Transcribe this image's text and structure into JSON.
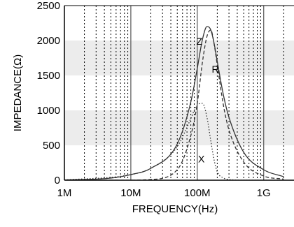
{
  "chart_data": {
    "type": "line",
    "title": "",
    "xlabel": "FREQUENCY(Hz)",
    "ylabel": "IMPEDANCE(Ω)",
    "x_scale": "log",
    "xlim": [
      1000000,
      3000000000
    ],
    "ylim": [
      0,
      2500
    ],
    "x_ticks": [
      {
        "value": 1000000,
        "label": "1M"
      },
      {
        "value": 10000000,
        "label": "10M"
      },
      {
        "value": 100000000,
        "label": "100M"
      },
      {
        "value": 1000000000,
        "label": "1G"
      }
    ],
    "y_ticks": [
      {
        "value": 0,
        "label": "0"
      },
      {
        "value": 500,
        "label": "500"
      },
      {
        "value": 1000,
        "label": "1000"
      },
      {
        "value": 1500,
        "label": "1500"
      },
      {
        "value": 2000,
        "label": "2000"
      },
      {
        "value": 2500,
        "label": "2500"
      }
    ],
    "grid": true,
    "legend": "none",
    "series": [
      {
        "name": "Z",
        "style": "solid",
        "x": [
          1000000,
          5000000,
          10000000,
          20000000,
          50000000,
          80000000,
          100000000,
          120000000,
          140000000,
          160000000,
          180000000,
          200000000,
          250000000,
          300000000,
          500000000,
          1000000000,
          2000000000
        ],
        "values": [
          3,
          30,
          80,
          170,
          520,
          1120,
          1600,
          2020,
          2200,
          2150,
          1950,
          1700,
          1200,
          900,
          400,
          150,
          50
        ]
      },
      {
        "name": "R",
        "style": "dashed",
        "x": [
          1000000,
          10000000,
          20000000,
          50000000,
          80000000,
          100000000,
          120000000,
          140000000,
          160000000,
          180000000,
          200000000,
          250000000,
          300000000,
          500000000,
          1000000000,
          2000000000
        ],
        "values": [
          0,
          0,
          10,
          150,
          640,
          1100,
          1700,
          2060,
          2150,
          1940,
          1650,
          1050,
          720,
          260,
          60,
          15
        ]
      },
      {
        "name": "X",
        "style": "dotted",
        "x": [
          1000000,
          10000000,
          20000000,
          50000000,
          80000000,
          100000000,
          120000000,
          140000000,
          160000000,
          180000000,
          200000000,
          250000000,
          300000000,
          500000000,
          1000000000,
          2000000000
        ],
        "values": [
          3,
          80,
          170,
          480,
          880,
          1080,
          1100,
          900,
          560,
          280,
          120,
          30,
          10,
          0,
          0,
          0
        ]
      }
    ],
    "annotations": [
      {
        "text": "Z",
        "series": "Z"
      },
      {
        "text": "R",
        "series": "R"
      },
      {
        "text": "X",
        "series": "X"
      }
    ],
    "colors": {
      "band": "#ececec",
      "line": "#333333",
      "grid": "#000000"
    }
  }
}
